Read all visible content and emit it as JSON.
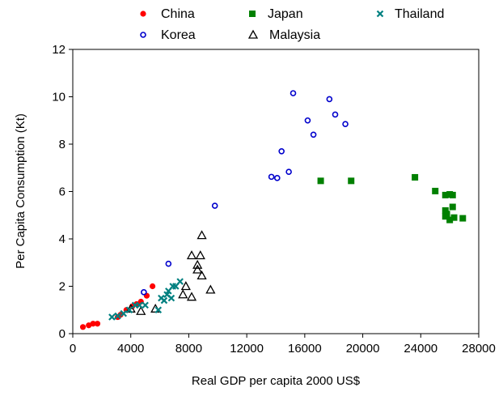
{
  "chart_data": {
    "type": "scatter",
    "xlabel": "Real GDP per capita 2000 US$",
    "ylabel": "Per Capita Consumption (Kt)",
    "xlim": [
      0,
      28000
    ],
    "ylim": [
      0,
      12
    ],
    "xticks": [
      0,
      4000,
      8000,
      12000,
      16000,
      20000,
      24000,
      28000
    ],
    "yticks": [
      0,
      2,
      4,
      6,
      8,
      10,
      12
    ],
    "xtick_labels": [
      "0",
      "4000",
      "8000",
      "12000",
      "16000",
      "20000",
      "24000",
      "28000"
    ],
    "ytick_labels": [
      "0",
      "2",
      "4",
      "6",
      "8",
      "10",
      "12"
    ],
    "grid": false,
    "legend_position": "top",
    "series": [
      {
        "name": "China",
        "marker": "filled-circle",
        "color": "#ff0000",
        "points": [
          [
            700,
            0.28
          ],
          [
            1100,
            0.35
          ],
          [
            1400,
            0.42
          ],
          [
            1700,
            0.42
          ],
          [
            3100,
            0.7
          ],
          [
            3300,
            0.8
          ],
          [
            3700,
            1.0
          ],
          [
            4100,
            1.15
          ],
          [
            4400,
            1.25
          ],
          [
            4700,
            1.35
          ],
          [
            5100,
            1.6
          ],
          [
            5500,
            2.0
          ]
        ]
      },
      {
        "name": "Korea",
        "marker": "open-circle",
        "color": "#0000cc",
        "points": [
          [
            4900,
            1.75
          ],
          [
            6600,
            2.95
          ],
          [
            9800,
            5.4
          ],
          [
            13700,
            6.62
          ],
          [
            14100,
            6.57
          ],
          [
            14400,
            7.7
          ],
          [
            14900,
            6.83
          ],
          [
            15200,
            10.15
          ],
          [
            16200,
            9.0
          ],
          [
            16600,
            8.4
          ],
          [
            17700,
            9.9
          ],
          [
            18100,
            9.25
          ],
          [
            18800,
            8.85
          ]
        ]
      },
      {
        "name": "Japan",
        "marker": "filled-square",
        "color": "#008000",
        "points": [
          [
            17100,
            6.45
          ],
          [
            19200,
            6.45
          ],
          [
            23600,
            6.6
          ],
          [
            25000,
            6.02
          ],
          [
            25700,
            5.85
          ],
          [
            26000,
            5.88
          ],
          [
            26200,
            5.85
          ],
          [
            25700,
            5.2
          ],
          [
            26200,
            5.35
          ],
          [
            25800,
            5.05
          ],
          [
            25700,
            4.95
          ],
          [
            26000,
            4.8
          ],
          [
            26300,
            4.9
          ],
          [
            26900,
            4.87
          ]
        ]
      },
      {
        "name": "Malaysia",
        "marker": "open-triangle",
        "color": "#000000",
        "points": [
          [
            4000,
            1.05
          ],
          [
            4700,
            0.95
          ],
          [
            5700,
            1.05
          ],
          [
            7600,
            1.65
          ],
          [
            7800,
            2.0
          ],
          [
            8200,
            1.55
          ],
          [
            8200,
            3.3
          ],
          [
            8600,
            2.7
          ],
          [
            8600,
            2.9
          ],
          [
            8800,
            3.3
          ],
          [
            8900,
            2.45
          ],
          [
            8900,
            4.15
          ],
          [
            9500,
            1.85
          ]
        ]
      },
      {
        "name": "Thailand",
        "marker": "x",
        "color": "#008080",
        "points": [
          [
            2700,
            0.7
          ],
          [
            3100,
            0.75
          ],
          [
            3500,
            0.85
          ],
          [
            3900,
            1.0
          ],
          [
            4300,
            1.2
          ],
          [
            4600,
            1.2
          ],
          [
            5000,
            1.2
          ],
          [
            5900,
            1.0
          ],
          [
            6100,
            1.5
          ],
          [
            6300,
            1.4
          ],
          [
            6500,
            1.65
          ],
          [
            6600,
            1.8
          ],
          [
            6800,
            1.5
          ],
          [
            6900,
            2.0
          ],
          [
            7100,
            2.0
          ],
          [
            7400,
            2.2
          ]
        ]
      }
    ]
  }
}
